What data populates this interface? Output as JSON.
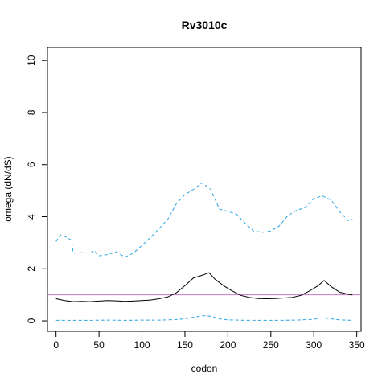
{
  "chart_data": {
    "type": "line",
    "title": "Rv3010c",
    "xlabel": "codon",
    "ylabel": "omega (dN/dS)",
    "xlim": [
      -10,
      355
    ],
    "ylim": [
      -0.4,
      10.5
    ],
    "x_ticks": [
      0,
      50,
      100,
      150,
      200,
      250,
      300,
      350
    ],
    "y_ticks": [
      0,
      2,
      4,
      6,
      8,
      10
    ],
    "grid": false,
    "legend": "none",
    "reference_line": {
      "y": 1,
      "color": "#c777c7"
    },
    "series": [
      {
        "style": "solid",
        "color": "#000000",
        "x": [
          0,
          10,
          20,
          30,
          40,
          50,
          60,
          70,
          80,
          90,
          100,
          110,
          120,
          130,
          140,
          150,
          160,
          170,
          178,
          185,
          195,
          205,
          215,
          225,
          235,
          245,
          255,
          265,
          275,
          285,
          295,
          305,
          312,
          320,
          330,
          340,
          345
        ],
        "y": [
          0.85,
          0.78,
          0.74,
          0.75,
          0.74,
          0.76,
          0.78,
          0.77,
          0.75,
          0.76,
          0.78,
          0.8,
          0.85,
          0.92,
          1.08,
          1.35,
          1.65,
          1.75,
          1.85,
          1.6,
          1.35,
          1.15,
          0.98,
          0.9,
          0.86,
          0.85,
          0.86,
          0.88,
          0.9,
          0.98,
          1.15,
          1.35,
          1.55,
          1.32,
          1.1,
          1.02,
          1.0
        ]
      },
      {
        "style": "dashed",
        "color": "#2aa5e0",
        "x": [
          0,
          5,
          10,
          18,
          20,
          30,
          40,
          45,
          50,
          60,
          70,
          80,
          90,
          100,
          110,
          120,
          130,
          140,
          150,
          160,
          170,
          180,
          190,
          200,
          210,
          220,
          230,
          240,
          250,
          260,
          270,
          280,
          290,
          300,
          310,
          320,
          330,
          340,
          345
        ],
        "y": [
          3.05,
          3.3,
          3.25,
          3.1,
          2.6,
          2.62,
          2.6,
          2.7,
          2.5,
          2.55,
          2.65,
          2.45,
          2.6,
          2.9,
          3.2,
          3.55,
          3.9,
          4.5,
          4.85,
          5.05,
          5.3,
          5.05,
          4.3,
          4.2,
          4.1,
          3.75,
          3.45,
          3.4,
          3.45,
          3.65,
          4.05,
          4.25,
          4.35,
          4.7,
          4.8,
          4.65,
          4.2,
          3.85,
          3.9
        ]
      },
      {
        "style": "dashed",
        "color": "#2aa5e0",
        "x": [
          0,
          20,
          40,
          60,
          80,
          100,
          120,
          140,
          150,
          160,
          170,
          180,
          190,
          200,
          220,
          240,
          260,
          280,
          300,
          310,
          320,
          330,
          345
        ],
        "y": [
          0.02,
          0.02,
          0.02,
          0.03,
          0.02,
          0.03,
          0.03,
          0.05,
          0.08,
          0.14,
          0.2,
          0.18,
          0.08,
          0.04,
          0.02,
          0.02,
          0.02,
          0.03,
          0.06,
          0.12,
          0.08,
          0.04,
          0.02
        ]
      }
    ]
  }
}
